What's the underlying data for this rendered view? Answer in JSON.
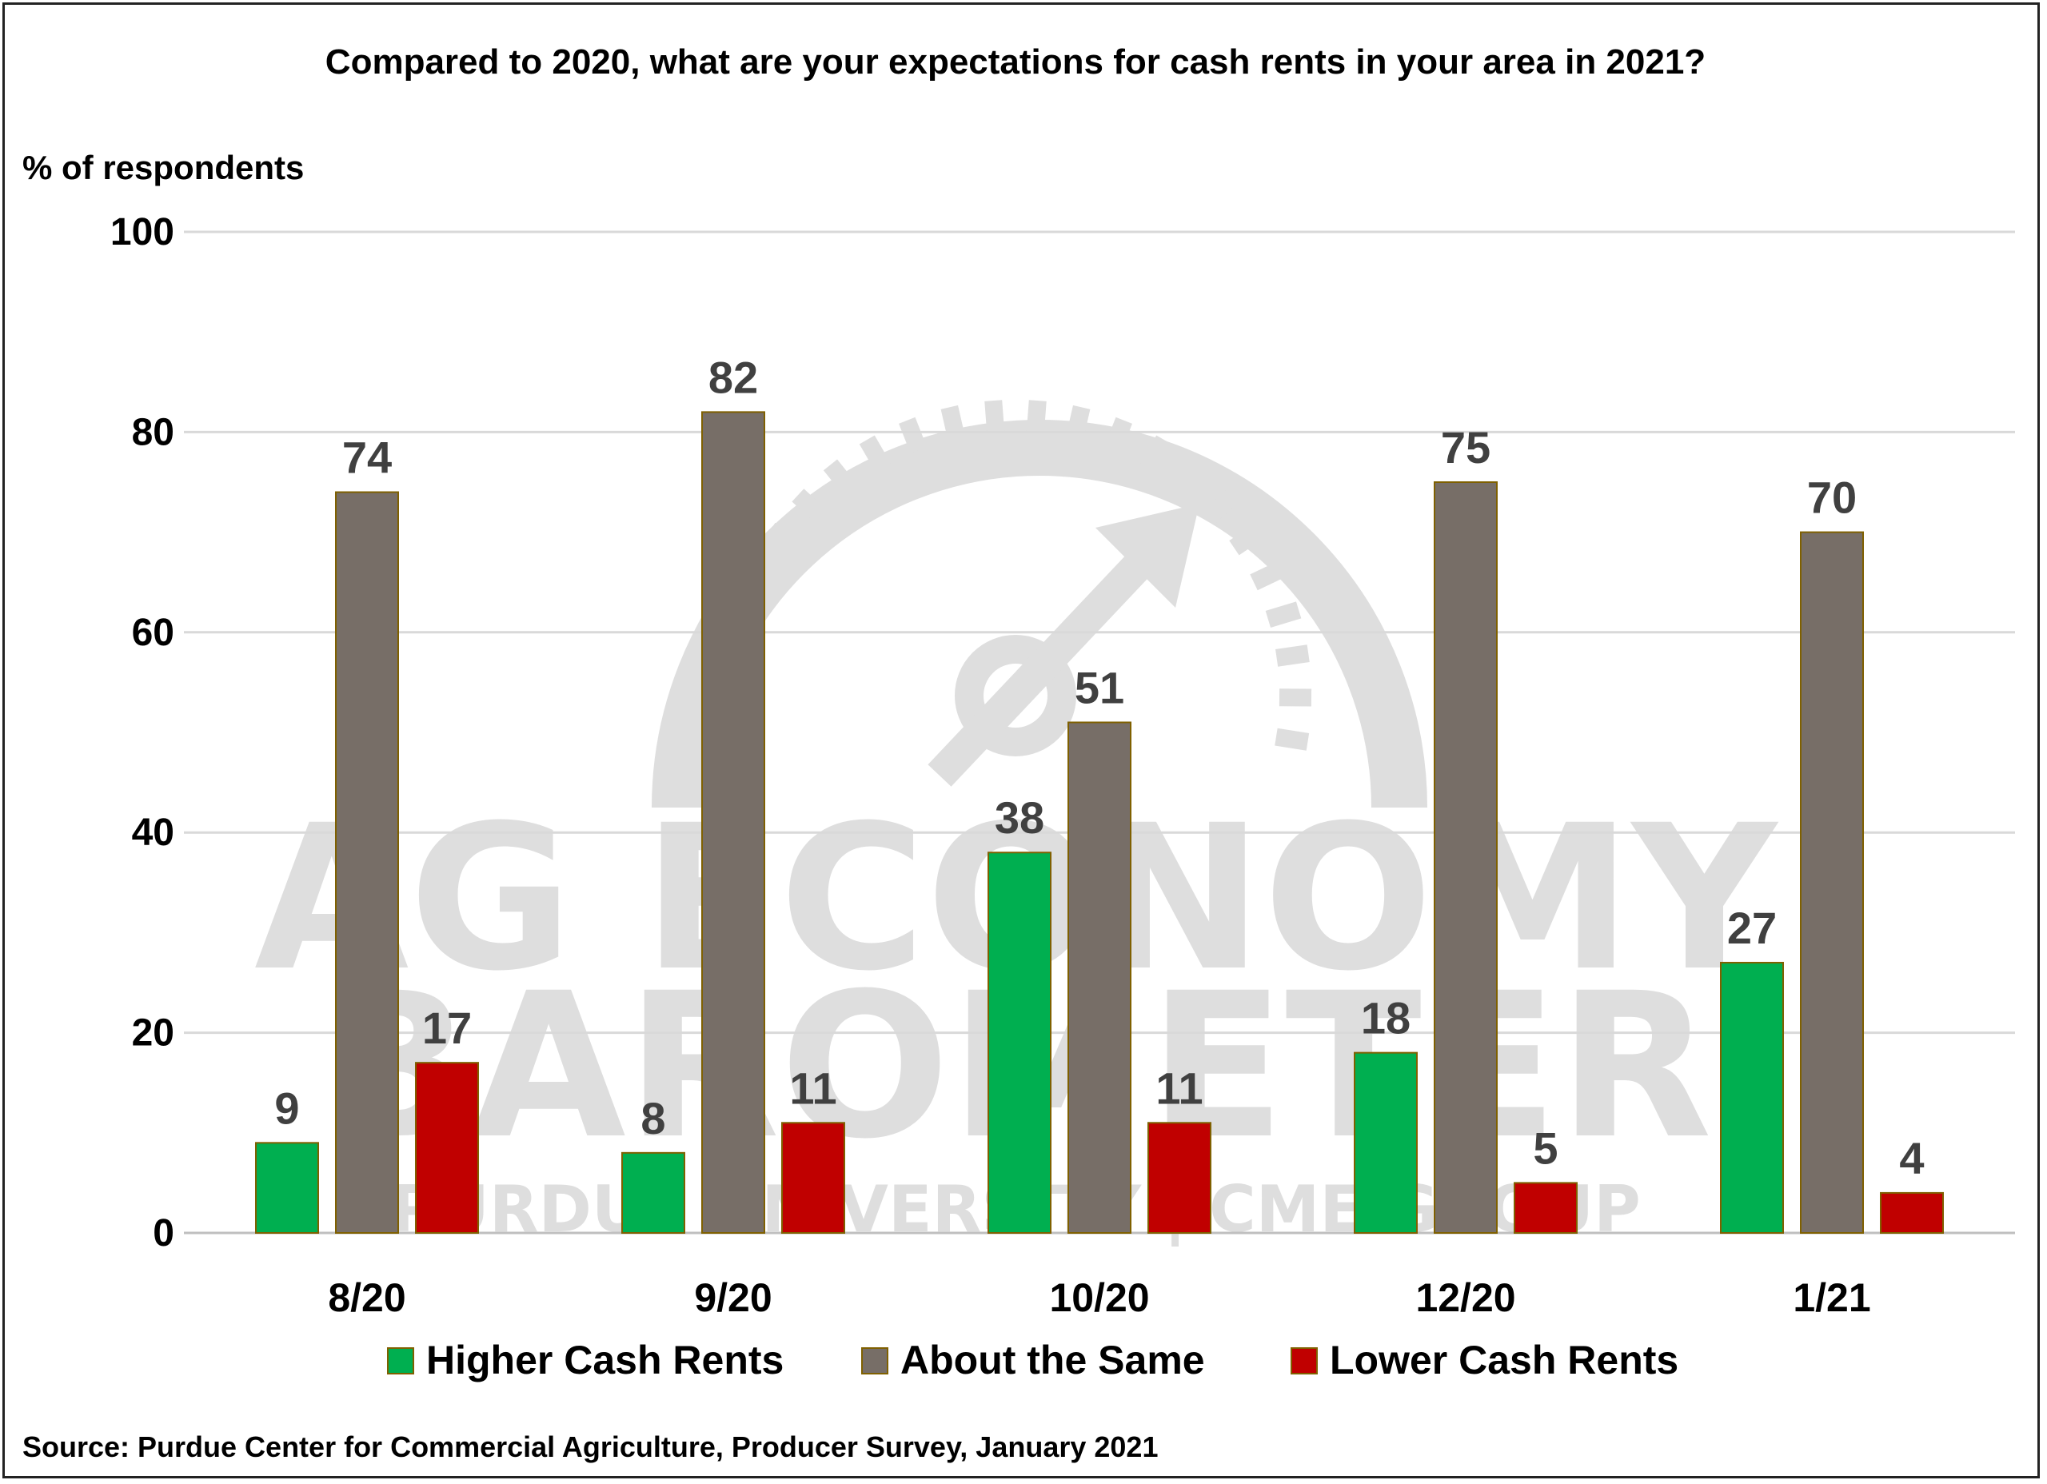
{
  "chart_data": {
    "type": "bar",
    "title": "Compared to 2020, what are your expectations for cash rents in your area in 2021?",
    "ylabel": "% of respondents",
    "xlabel": "",
    "ylim": [
      0,
      100
    ],
    "yticks": [
      "0",
      "20",
      "40",
      "60",
      "80",
      "100"
    ],
    "grid": true,
    "legend_position": "bottom",
    "categories": [
      "8/20",
      "9/20",
      "10/20",
      "12/20",
      "1/21"
    ],
    "series": [
      {
        "name": "Higher Cash Rents",
        "color": "#00AF50",
        "values": [
          9,
          8,
          38,
          18,
          27
        ]
      },
      {
        "name": "About the Same",
        "color": "#776E67",
        "values": [
          74,
          82,
          51,
          75,
          70
        ]
      },
      {
        "name": "Lower Cash Rents",
        "color": "#C00000",
        "values": [
          17,
          11,
          11,
          5,
          4
        ]
      }
    ],
    "source": "Source: Purdue Center for Commercial Agriculture, Producer Survey, January 2021"
  },
  "watermark": {
    "line1": "AG ECONOMY",
    "line2": "BAROMETER",
    "line3": "PURDUE UNIVERSITY | CME GROUP"
  }
}
